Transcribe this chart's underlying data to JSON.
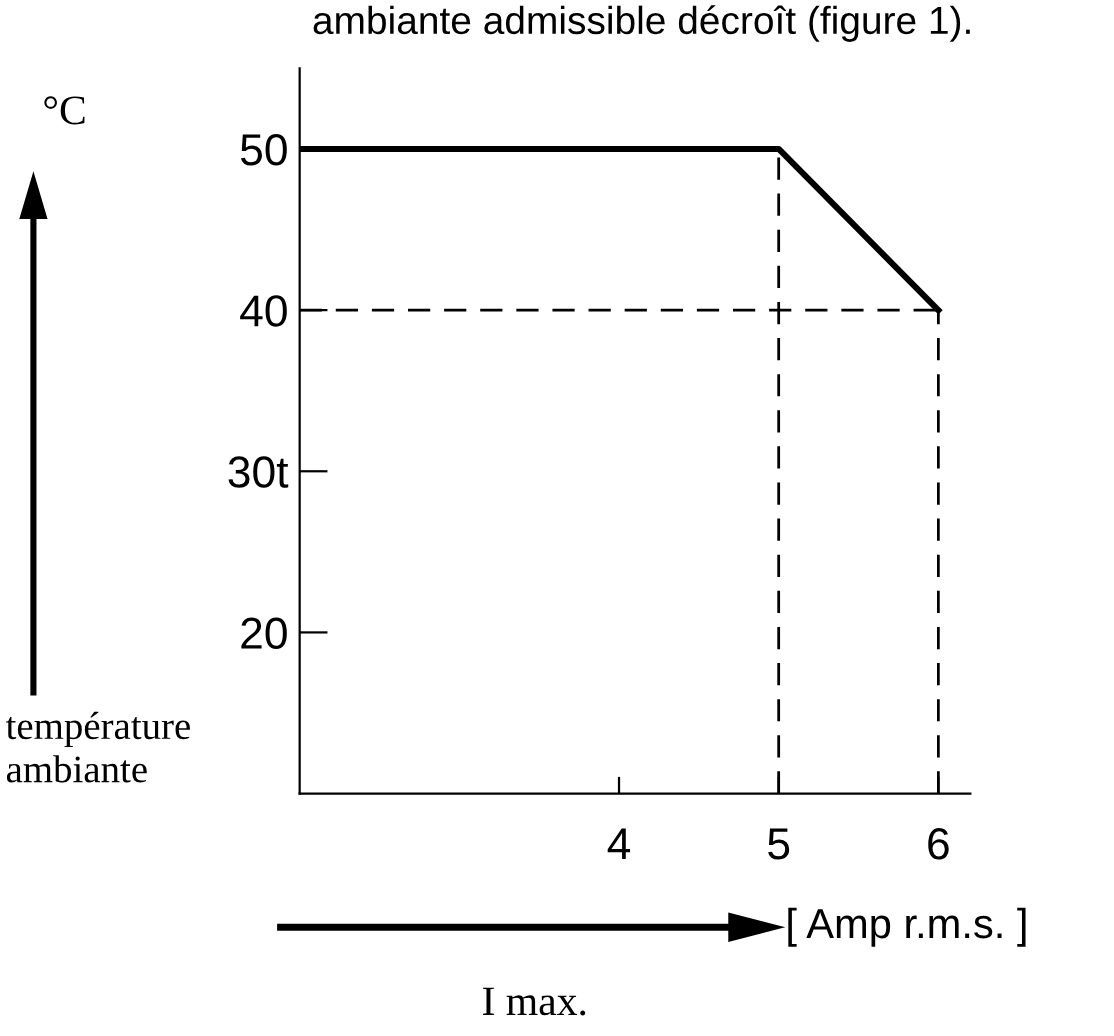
{
  "chart_data": {
    "type": "line",
    "title": "ambiante admissible décroît (figure 1).",
    "ylabel": "°C",
    "xlabel": "[ Amp r.m.s. ]",
    "annotations": [
      "température\nambiante",
      "I max."
    ],
    "x": [
      2,
      5,
      6
    ],
    "series": [
      {
        "color": "#000000",
        "values": [
          50,
          50,
          40
        ]
      }
    ],
    "xlim": [
      2,
      6.2
    ],
    "ylim": [
      10,
      55
    ],
    "xticks": [
      4,
      5,
      6
    ],
    "yticks": [
      20,
      {
        "value": 30,
        "label": "30t"
      },
      40,
      50
    ],
    "ref_lines": [
      {
        "axis": "x",
        "value": 5,
        "color": "#000000",
        "line_style": "dashed"
      },
      {
        "axis": "x",
        "value": 6,
        "color": "#000000",
        "line_style": "dashed"
      },
      {
        "axis": "y",
        "value": 40,
        "color": "#000000",
        "line_style": "dashed"
      }
    ],
    "marker": "none",
    "line_style": "solid",
    "grid": false,
    "legend": false
  }
}
